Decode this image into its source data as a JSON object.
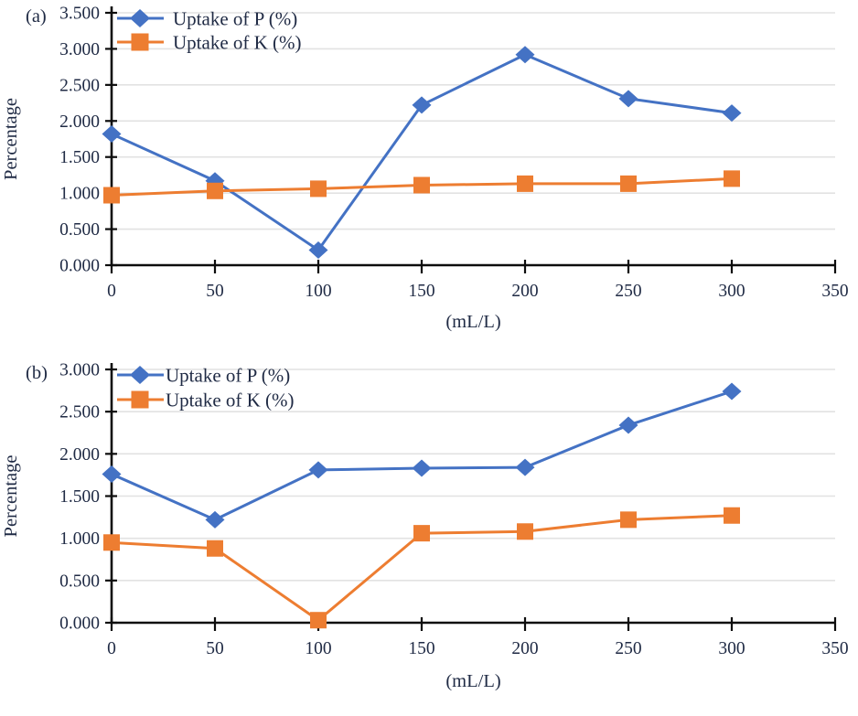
{
  "figure_title": "",
  "colors": {
    "series_p_blue": "#4472C4",
    "series_k_orange": "#ED7D31",
    "axis_line": "#0d0d0d",
    "gridline": "#e2e2e2",
    "text": "#1f2a44"
  },
  "chart_data": [
    {
      "type": "line",
      "panel_label": "(a)",
      "xlabel": "(mL/L)",
      "ylabel": "Percentage",
      "x": [
        0,
        50,
        100,
        150,
        200,
        250,
        300
      ],
      "xlim": [
        0,
        350
      ],
      "ylim": [
        0,
        3.5
      ],
      "xtick_step": 50,
      "ytick_step": 0.5,
      "ytick_decimals": 3,
      "grid": "horizontal",
      "legend_position": "top-left-inside",
      "series": [
        {
          "name": "Uptake of P (%)",
          "marker": "diamond",
          "color": "#4472C4",
          "values": [
            1.82,
            1.17,
            0.21,
            2.22,
            2.92,
            2.31,
            2.11
          ]
        },
        {
          "name": "Uptake of K (%)",
          "marker": "square",
          "color": "#ED7D31",
          "values": [
            0.97,
            1.03,
            1.06,
            1.11,
            1.13,
            1.13,
            1.2
          ]
        }
      ]
    },
    {
      "type": "line",
      "panel_label": "(b)",
      "xlabel": "(mL/L)",
      "ylabel": "Percentage",
      "x": [
        0,
        50,
        100,
        150,
        200,
        250,
        300
      ],
      "xlim": [
        0,
        350
      ],
      "ylim": [
        0,
        3.0
      ],
      "xtick_step": 50,
      "ytick_step": 0.5,
      "ytick_decimals": 3,
      "grid": "horizontal",
      "legend_position": "top-left-inside",
      "series": [
        {
          "name": "Uptake of P (%)",
          "marker": "diamond",
          "color": "#4472C4",
          "values": [
            1.76,
            1.22,
            1.81,
            1.83,
            1.84,
            2.34,
            2.74
          ]
        },
        {
          "name": "Uptake of K (%)",
          "marker": "square",
          "color": "#ED7D31",
          "values": [
            0.95,
            0.88,
            0.03,
            1.06,
            1.08,
            1.22,
            1.27
          ]
        }
      ]
    }
  ]
}
